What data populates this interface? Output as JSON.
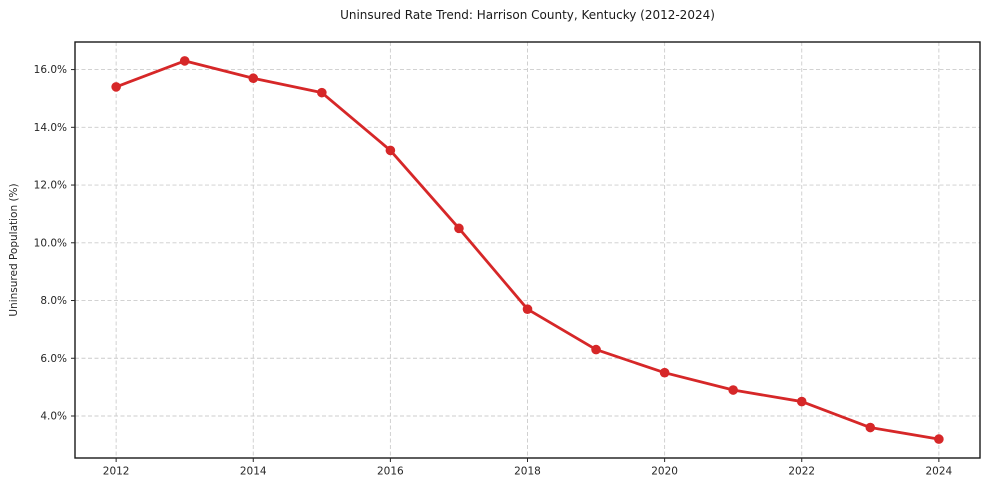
{
  "chart_data": {
    "type": "line",
    "title": "Uninsured Rate Trend: Harrison County, Kentucky (2012-2024)",
    "xlabel": "",
    "ylabel": "Uninsured Population (%)",
    "x": [
      2012,
      2013,
      2014,
      2015,
      2016,
      2017,
      2018,
      2019,
      2020,
      2021,
      2022,
      2023,
      2024
    ],
    "series": [
      {
        "name": "Uninsured rate",
        "values": [
          15.4,
          16.3,
          15.7,
          15.2,
          13.2,
          10.5,
          7.7,
          6.3,
          5.5,
          4.9,
          4.5,
          3.6,
          3.2
        ],
        "color": "#d62728",
        "marker": "circle"
      }
    ],
    "xticks": [
      2012,
      2014,
      2016,
      2018,
      2020,
      2022,
      2024
    ],
    "yticks": [
      4,
      6,
      8,
      10,
      12,
      14,
      16
    ],
    "ytick_suffix": "%",
    "ytick_decimals": 1,
    "xlim": [
      2011.4,
      2024.6
    ],
    "ylim": [
      2.545,
      16.955
    ],
    "grid": true,
    "grid_color": "#cccccc",
    "grid_dash": "4 2.5",
    "spine_color": "#1a1a1a",
    "tick_color": "#262626",
    "background": "#ffffff",
    "legend_position": "none"
  }
}
